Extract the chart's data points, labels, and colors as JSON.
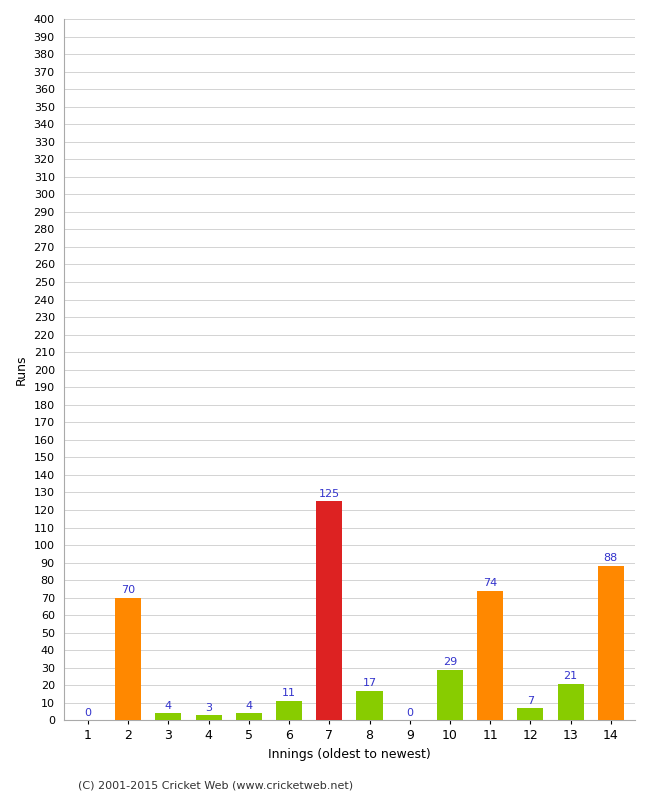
{
  "title": "",
  "xlabel": "Innings (oldest to newest)",
  "ylabel": "Runs",
  "categories": [
    1,
    2,
    3,
    4,
    5,
    6,
    7,
    8,
    9,
    10,
    11,
    12,
    13,
    14
  ],
  "values": [
    0,
    70,
    4,
    3,
    4,
    11,
    125,
    17,
    0,
    29,
    74,
    7,
    21,
    88
  ],
  "bar_colors": [
    "#88cc00",
    "#ff8800",
    "#88cc00",
    "#88cc00",
    "#88cc00",
    "#88cc00",
    "#dd2222",
    "#88cc00",
    "#88cc00",
    "#88cc00",
    "#ff8800",
    "#88cc00",
    "#88cc00",
    "#ff8800"
  ],
  "ylim": [
    0,
    400
  ],
  "ytick_step": 10,
  "label_color": "#3333cc",
  "background_color": "#ffffff",
  "grid_color": "#cccccc",
  "footer": "(C) 2001-2015 Cricket Web (www.cricketweb.net)"
}
